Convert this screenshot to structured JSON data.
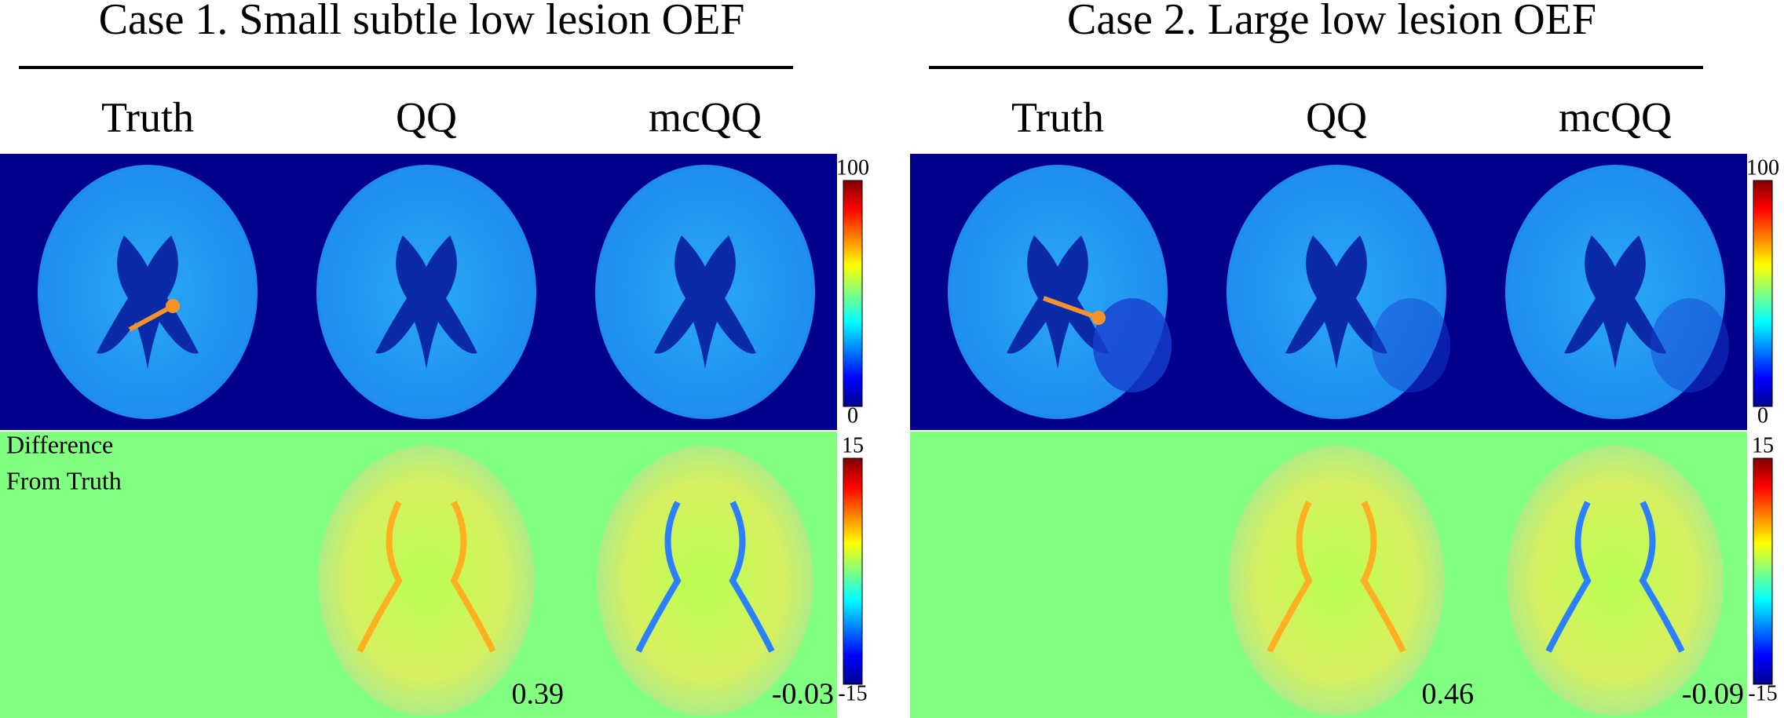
{
  "panels": [
    {
      "title": "Case 1. Small subtle low lesion OEF",
      "columns": [
        "Truth",
        "QQ",
        "mcQQ"
      ],
      "oef_colorbar": {
        "max": "100",
        "min": "0"
      },
      "diff_label": [
        "Difference",
        "From Truth"
      ],
      "diff_colorbar": {
        "max": "15",
        "min": "-15"
      },
      "diff_values": [
        "0.39",
        "-0.03"
      ]
    },
    {
      "title": "Case 2. Large low lesion OEF",
      "columns": [
        "Truth",
        "QQ",
        "mcQQ"
      ],
      "oef_colorbar": {
        "max": "100",
        "min": "0"
      },
      "diff_colorbar": {
        "max": "15",
        "min": "-15"
      },
      "diff_values": [
        "0.46",
        "-0.09"
      ]
    }
  ]
}
